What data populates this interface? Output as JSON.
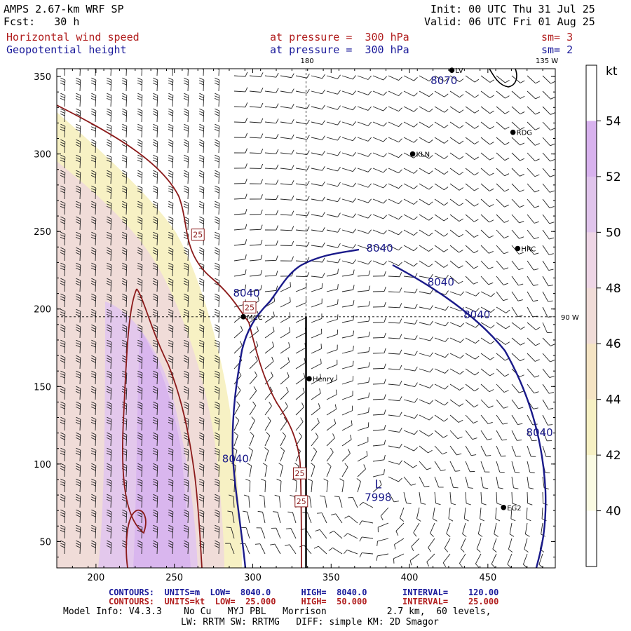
{
  "header": {
    "model_title": "AMPS 2.67-km WRF SP",
    "forecast": "Fcst:   30 h",
    "init_time": "Init: 00 UTC Thu 31 Jul 25",
    "valid_time": "Valid: 06 UTC Fri 01 Aug 25",
    "field1_name": "Horizontal wind speed",
    "field1_level": "at pressure =  300 hPa",
    "field1_smooth": "sm= 3",
    "field2_name": "Geopotential height",
    "field2_level": "at pressure =  300 hPa",
    "field2_smooth": "sm= 2"
  },
  "colors": {
    "wind_contour": "#8b1a1a",
    "height_contour": "#1a1a8a",
    "label_red": "#b11e1e",
    "label_blue": "#1a1a9a"
  },
  "footer": {
    "line1": "CONTOURS:  UNITS=m  LOW=  8040.0      HIGH=  8040.0       INTERVAL=    120.00",
    "line2": "CONTOURS:  UNITS=kt  LOW=  25.000     HIGH=  50.000       INTERVAL=    25.000",
    "model_info": "Model Info: V4.3.3    No Cu   MYJ PBL   Morrison           2.7 km,  60 levels,",
    "model_info2": "LW: RRTM SW: RRTMG   DIFF: simple KM: 2D Smagor"
  },
  "chart_data": {
    "type": "heatmap",
    "title": "Horizontal wind speed / Geopotential height at 300 hPa",
    "x_ticks": [
      200,
      250,
      300,
      350,
      400,
      450
    ],
    "y_ticks": [
      50,
      100,
      150,
      200,
      250,
      300,
      350
    ],
    "xlim": [
      175,
      493
    ],
    "ylim": [
      33,
      355
    ],
    "colorbar": {
      "unit": "kt",
      "ticks": [
        40,
        42,
        44,
        46,
        48,
        50,
        52,
        54
      ],
      "range": [
        38,
        56
      ],
      "colors": [
        "#ffffff",
        "#fbfbe3",
        "#f7f1c4",
        "#f5e4c4",
        "#f0dcd8",
        "#eed6e6",
        "#e0c4ec",
        "#d8b2ee",
        "#ffffff"
      ]
    },
    "grid_labels": {
      "lon_180": "180",
      "lon_135w": "135 W",
      "lon_90w": "90 W"
    },
    "stations": [
      {
        "name": "RDG",
        "x": 466,
        "y": 314
      },
      {
        "name": "KLN",
        "x": 402,
        "y": 300
      },
      {
        "name": "HRC",
        "x": 469,
        "y": 239
      },
      {
        "name": "MCC",
        "x": 294,
        "y": 195
      },
      {
        "name": "Henry",
        "x": 336,
        "y": 155
      },
      {
        "name": "EG2",
        "x": 460,
        "y": 72
      },
      {
        "name": "LV",
        "x": 427,
        "y": 354
      }
    ],
    "height_labels": [
      {
        "text": "8070",
        "x": 422,
        "y": 345
      },
      {
        "text": "8040",
        "x": 381,
        "y": 237
      },
      {
        "text": "8040",
        "x": 296,
        "y": 208
      },
      {
        "text": "8040",
        "x": 420,
        "y": 215
      },
      {
        "text": "8040",
        "x": 443,
        "y": 194
      },
      {
        "text": "8040",
        "x": 483,
        "y": 118
      },
      {
        "text": "8040",
        "x": 289,
        "y": 101
      }
    ],
    "low_center": {
      "marker": "L",
      "value": "7998",
      "x": 380,
      "y": 78
    },
    "wind_labels": [
      {
        "text": "25",
        "x": 265,
        "y": 248
      },
      {
        "text": "25",
        "x": 298,
        "y": 201
      },
      {
        "text": "25",
        "x": 330,
        "y": 94
      },
      {
        "text": "25",
        "x": 331,
        "y": 76
      }
    ]
  }
}
